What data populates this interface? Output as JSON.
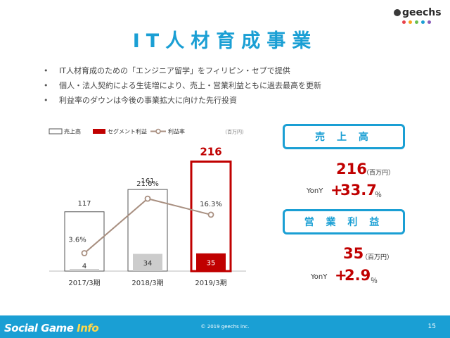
{
  "logo": {
    "text": "geechs",
    "dot_colors": [
      "#e8414a",
      "#f7a31c",
      "#6bbf4e",
      "#1a9fd4",
      "#8a5bb8"
    ]
  },
  "title": "IT人材育成事業",
  "bullets": [
    "IT人材育成のための「エンジニア留学」をフィリピン・セブで提供",
    "個人・法人契約による生徒増により、売上・営業利益ともに過去最高を更新",
    "利益率のダウンは今後の事業拡大に向けた先行投資"
  ],
  "chart_data": {
    "type": "bar",
    "categories": [
      "2017/3期",
      "2018/3期",
      "2019/3期"
    ],
    "unit": "（百万円）",
    "series": [
      {
        "name": "売上高",
        "kind": "bar",
        "values": [
          117,
          161,
          216
        ],
        "labels": [
          "117",
          "161",
          "216"
        ]
      },
      {
        "name": "セグメント利益",
        "kind": "bar",
        "values": [
          4,
          34,
          35
        ],
        "labels": [
          "4",
          "34",
          "35"
        ]
      },
      {
        "name": "利益率",
        "kind": "line",
        "values": [
          3.6,
          21.6,
          16.3
        ],
        "labels": [
          "3.6%",
          "21.6%",
          "16.3%"
        ]
      }
    ],
    "colors": {
      "sales": "#555555",
      "sales_highlight": "#c00000",
      "profit": "#cccccc",
      "profit_highlight": "#c00000",
      "line": "#a88f80"
    },
    "legend_position": "top-left"
  },
  "kpi": {
    "sales": {
      "label": "売 上 高",
      "value": "216",
      "unit": "（百万円）",
      "yony_label": "YonY",
      "sign": "+",
      "change": "33.7",
      "pct": "％"
    },
    "profit": {
      "label": "営 業 利 益",
      "value": "35",
      "unit": "（百万円）",
      "yony_label": "YonY",
      "sign": "+",
      "change": "2.9",
      "pct": "％"
    }
  },
  "footer": {
    "brand_a": "Social Game",
    "brand_b": "Info",
    "copyright": "© 2019 geechs inc.",
    "page": "15"
  }
}
